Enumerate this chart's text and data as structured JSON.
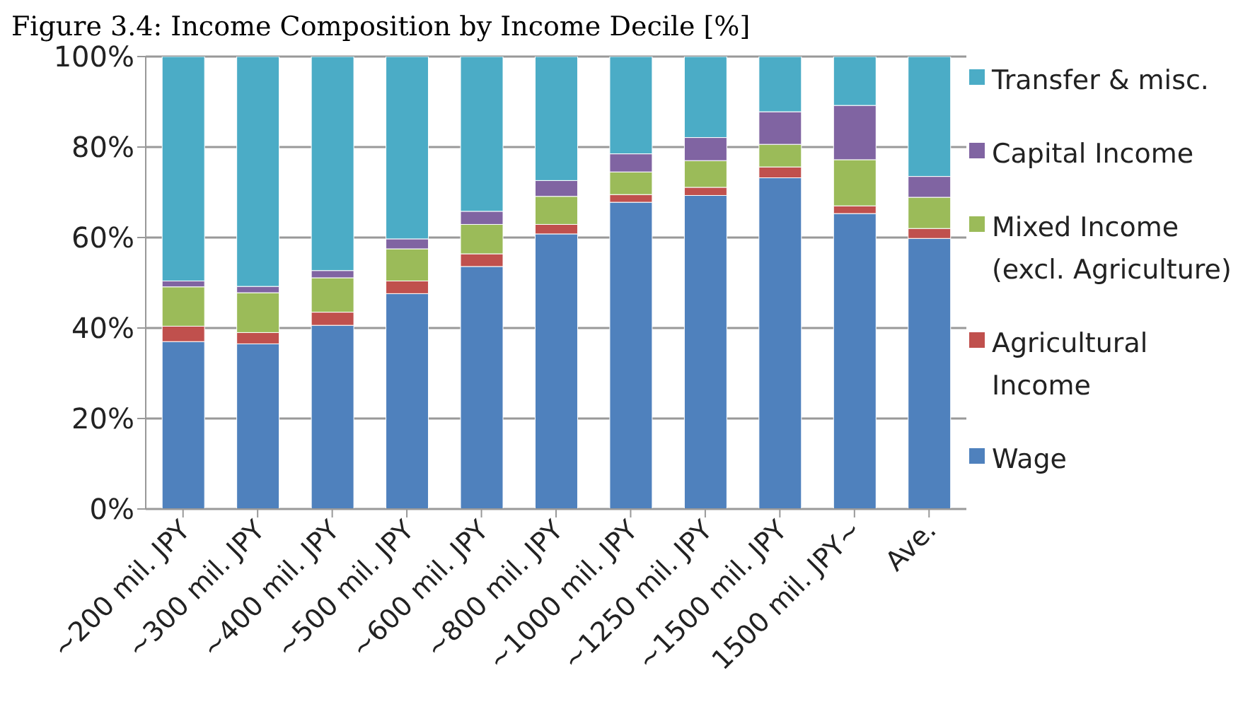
{
  "chart_data": {
    "type": "bar",
    "title": "Figure 3.4: Income Composition by Income Decile [%]",
    "categories": [
      "~200 mil. JPY",
      "~300 mil. JPY",
      "~400 mil. JPY",
      "~500 mil. JPY",
      "~600 mil. JPY",
      "~800 mil. JPY",
      "~1000 mil. JPY",
      "~1250 mil. JPY",
      "~1500 mil. JPY",
      "1500 mil. JPY~",
      "Ave."
    ],
    "stacked": true,
    "series": [
      {
        "name": "Wage",
        "color": "#4f81bd",
        "values": [
          37.0,
          36.5,
          40.6,
          47.6,
          53.6,
          60.8,
          67.8,
          69.3,
          73.2,
          65.3,
          59.8
        ]
      },
      {
        "name": "Agricultural Income",
        "color": "#c0504d",
        "values": [
          3.4,
          2.5,
          2.9,
          2.8,
          2.8,
          2.1,
          1.7,
          1.8,
          2.4,
          1.7,
          2.2
        ]
      },
      {
        "name": "Mixed Income (excl. Agriculture)",
        "color": "#9bbb59",
        "values": [
          8.7,
          8.8,
          7.6,
          7.1,
          6.5,
          6.2,
          5.0,
          5.9,
          5.0,
          10.2,
          6.9
        ]
      },
      {
        "name": "Capital Income",
        "color": "#8064a2",
        "values": [
          1.3,
          1.4,
          1.6,
          2.2,
          2.9,
          3.5,
          4.0,
          5.1,
          7.2,
          12.0,
          4.6
        ]
      },
      {
        "name": "Transfer & misc.",
        "color": "#4bacc6",
        "values": [
          49.6,
          50.8,
          47.3,
          40.3,
          34.2,
          27.4,
          21.5,
          17.9,
          12.2,
          10.8,
          26.5
        ]
      }
    ],
    "ylim": [
      0,
      100
    ],
    "yticks": [
      {
        "value": 0,
        "label": "0%"
      },
      {
        "value": 20,
        "label": "20%"
      },
      {
        "value": 40,
        "label": "40%"
      },
      {
        "value": 60,
        "label": "60%"
      },
      {
        "value": 80,
        "label": "80%"
      },
      {
        "value": 100,
        "label": "100%"
      }
    ],
    "grid": "y",
    "legend": "right"
  }
}
